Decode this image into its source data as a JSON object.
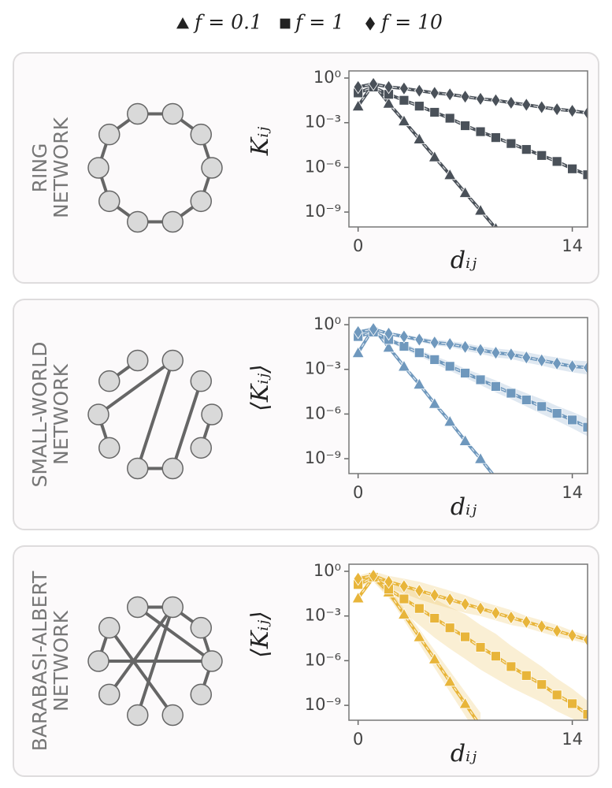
{
  "legend": {
    "entries": [
      {
        "marker": "triangle",
        "label": "f = 0.1"
      },
      {
        "marker": "square",
        "label": "f = 1"
      },
      {
        "marker": "diamond",
        "label": "f = 10"
      }
    ]
  },
  "chart_data": [
    {
      "type": "line",
      "label_lines": [
        "RING",
        "NETWORK"
      ],
      "ylabel": "Kᵢⱼ",
      "xlabel": "dᵢⱼ",
      "color": "#4a5159",
      "x": [
        0,
        1,
        2,
        3,
        4,
        5,
        6,
        7,
        8,
        9,
        10,
        11,
        12,
        13,
        14,
        15
      ],
      "xlim": [
        -0.6,
        15
      ],
      "xticks": [
        0,
        14
      ],
      "ylim": [
        1e-10,
        3
      ],
      "yscale": "log",
      "yticks": [
        {
          "value": 1,
          "label": "10⁰"
        },
        {
          "value": 0.001,
          "label": "10⁻³"
        },
        {
          "value": 1e-06,
          "label": "10⁻⁶"
        },
        {
          "value": 1e-09,
          "label": "10⁻⁹"
        }
      ],
      "series": [
        {
          "marker": "triangle",
          "values": [
            0.013,
            0.4,
            0.02,
            0.0013,
            8e-05,
            5e-06,
            3.2e-07,
            2e-08,
            1.3e-09,
            8e-11,
            null,
            null,
            null,
            null,
            null,
            null
          ]
        },
        {
          "marker": "square",
          "values": [
            0.1,
            0.25,
            0.08,
            0.032,
            0.013,
            0.005,
            0.002,
            0.00063,
            0.00025,
            0.0001,
            4e-05,
            1.6e-05,
            6.3e-06,
            2.5e-06,
            8e-07,
            3.2e-07
          ]
        },
        {
          "marker": "diamond",
          "values": [
            0.25,
            0.4,
            0.25,
            0.2,
            0.14,
            0.1,
            0.08,
            0.056,
            0.04,
            0.032,
            0.022,
            0.016,
            0.011,
            0.008,
            0.0063,
            0.0045
          ]
        }
      ]
    },
    {
      "type": "line",
      "label_lines": [
        "SMALL-WORLD",
        "NETWORK"
      ],
      "ylabel": "⟨Kᵢⱼ⟩",
      "xlabel": "dᵢⱼ",
      "color": "#6f98bd",
      "x": [
        0,
        1,
        2,
        3,
        4,
        5,
        6,
        7,
        8,
        9,
        10,
        11,
        12,
        13,
        14,
        15
      ],
      "xlim": [
        -0.6,
        15
      ],
      "xticks": [
        0,
        14
      ],
      "ylim": [
        1e-10,
        3
      ],
      "yscale": "log",
      "yticks": [
        {
          "value": 1,
          "label": "10⁰"
        },
        {
          "value": 0.001,
          "label": "10⁻³"
        },
        {
          "value": 1e-06,
          "label": "10⁻⁶"
        },
        {
          "value": 1e-09,
          "label": "10⁻⁹"
        }
      ],
      "series": [
        {
          "marker": "triangle",
          "values": [
            0.013,
            0.6,
            0.03,
            0.0016,
            0.0001,
            5e-06,
            3.2e-07,
            1.6e-08,
            1e-09,
            5e-11,
            null,
            null,
            null,
            null,
            null,
            null
          ]
        },
        {
          "marker": "square",
          "values": [
            0.16,
            0.32,
            0.1,
            0.035,
            0.013,
            0.0045,
            0.0016,
            0.00056,
            0.0002,
            7.1e-05,
            2.5e-05,
            8.9e-06,
            3.2e-06,
            1.1e-06,
            4e-07,
            1.3e-07
          ],
          "lower": [
            0.13,
            0.25,
            0.071,
            0.022,
            0.0079,
            0.0025,
            0.00079,
            0.00028,
            8.9e-05,
            2.8e-05,
            1e-05,
            3.2e-06,
            1e-06,
            3.5e-07,
            1.1e-07,
            3.2e-08
          ],
          "upper": [
            0.2,
            0.4,
            0.14,
            0.056,
            0.02,
            0.0079,
            0.0032,
            0.0011,
            0.00045,
            0.00018,
            6.3e-05,
            2.5e-05,
            1e-05,
            3.5e-06,
            1.4e-06,
            5e-07
          ]
        },
        {
          "marker": "diamond",
          "values": [
            0.32,
            0.5,
            0.25,
            0.16,
            0.1,
            0.063,
            0.05,
            0.032,
            0.02,
            0.013,
            0.01,
            0.0063,
            0.004,
            0.0025,
            0.0016,
            0.0013
          ],
          "lower": [
            0.25,
            0.4,
            0.2,
            0.11,
            0.071,
            0.04,
            0.032,
            0.018,
            0.011,
            0.0063,
            0.005,
            0.0028,
            0.0018,
            0.001,
            0.00063,
            0.00045
          ],
          "upper": [
            0.4,
            0.63,
            0.32,
            0.22,
            0.14,
            0.1,
            0.079,
            0.056,
            0.035,
            0.025,
            0.02,
            0.014,
            0.0089,
            0.0063,
            0.004,
            0.0035
          ]
        }
      ]
    },
    {
      "type": "line",
      "label_lines": [
        "BARABASI-ALBERT",
        "NETWORK"
      ],
      "ylabel": "⟨Kᵢⱼ⟩",
      "xlabel": "dᵢⱼ",
      "color": "#e8b53a",
      "x": [
        0,
        1,
        2,
        3,
        4,
        5,
        6,
        7,
        8,
        9,
        10,
        11,
        12,
        13,
        14,
        15
      ],
      "xlim": [
        -0.6,
        15
      ],
      "xticks": [
        0,
        14
      ],
      "ylim": [
        1e-10,
        3
      ],
      "yscale": "log",
      "yticks": [
        {
          "value": 1,
          "label": "10⁰"
        },
        {
          "value": 0.001,
          "label": "10⁻³"
        },
        {
          "value": 1e-06,
          "label": "10⁻⁶"
        },
        {
          "value": 1e-09,
          "label": "10⁻⁹"
        }
      ],
      "series": [
        {
          "marker": "triangle",
          "values": [
            0.016,
            0.4,
            0.04,
            0.0013,
            4e-05,
            1.3e-06,
            4e-08,
            1.3e-09,
            4e-11,
            null,
            null,
            null,
            null,
            null,
            null,
            null
          ],
          "lower": [
            0.01,
            0.25,
            0.02,
            0.0005,
            1.3e-05,
            3.2e-07,
            7.9e-09,
            2e-10,
            5e-12,
            null,
            null,
            null,
            null,
            null,
            null,
            null
          ],
          "upper": [
            0.025,
            0.63,
            0.079,
            0.0032,
            0.00013,
            5e-06,
            2e-07,
            7.9e-09,
            3.2e-10,
            null,
            null,
            null,
            null,
            null,
            null,
            null
          ]
        },
        {
          "marker": "square",
          "values": [
            0.13,
            0.4,
            0.063,
            0.014,
            0.0032,
            0.00071,
            0.00016,
            4e-05,
            7.9e-06,
            2e-06,
            4e-07,
            1e-07,
            2.5e-08,
            5e-09,
            1.3e-09,
            2.5e-10
          ],
          "lower": [
            0.079,
            0.2,
            0.016,
            0.0018,
            0.00025,
            3.5e-05,
            6.3e-06,
            1.3e-06,
            2.5e-07,
            6.3e-08,
            1.6e-08,
            5e-09,
            1.6e-09,
            4e-10,
            1.3e-10,
            3.2e-11
          ],
          "upper": [
            0.2,
            0.79,
            0.25,
            0.11,
            0.04,
            0.014,
            0.004,
            0.0013,
            0.00025,
            6.3e-05,
            1e-05,
            2e-06,
            4e-07,
            6.3e-08,
            1.3e-08,
            2e-09
          ]
        },
        {
          "marker": "diamond",
          "values": [
            0.32,
            0.5,
            0.2,
            0.1,
            0.05,
            0.025,
            0.013,
            0.0063,
            0.0032,
            0.0016,
            0.00079,
            0.0004,
            0.0002,
            0.0001,
            5e-05,
            2.5e-05
          ],
          "lower": [
            0.2,
            0.25,
            0.079,
            0.032,
            0.013,
            0.0063,
            0.0032,
            0.0016,
            0.001,
            0.0005,
            0.00025,
            0.00016,
            7.9e-05,
            4e-05,
            2.5e-05,
            1.3e-05
          ],
          "upper": [
            0.5,
            1,
            0.5,
            0.32,
            0.2,
            0.1,
            0.05,
            0.025,
            0.01,
            0.005,
            0.0025,
            0.001,
            0.0005,
            0.00025,
            0.0001,
            5e-05
          ]
        }
      ]
    }
  ]
}
